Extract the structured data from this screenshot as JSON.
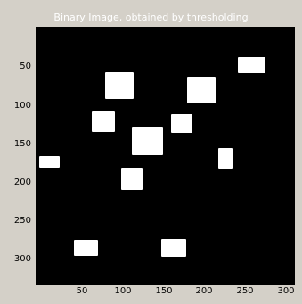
{
  "figure": {
    "title": "Binary Image, obtained by thresholding",
    "background_color": "#d4d0c8",
    "axes_background": "#000000",
    "foreground_color": "#ffffff"
  },
  "axes": {
    "y_ticks": [
      "50",
      "100",
      "150",
      "200",
      "250",
      "300"
    ],
    "x_ticks": [
      "50",
      "100",
      "150",
      "200",
      "250",
      "300"
    ]
  }
}
